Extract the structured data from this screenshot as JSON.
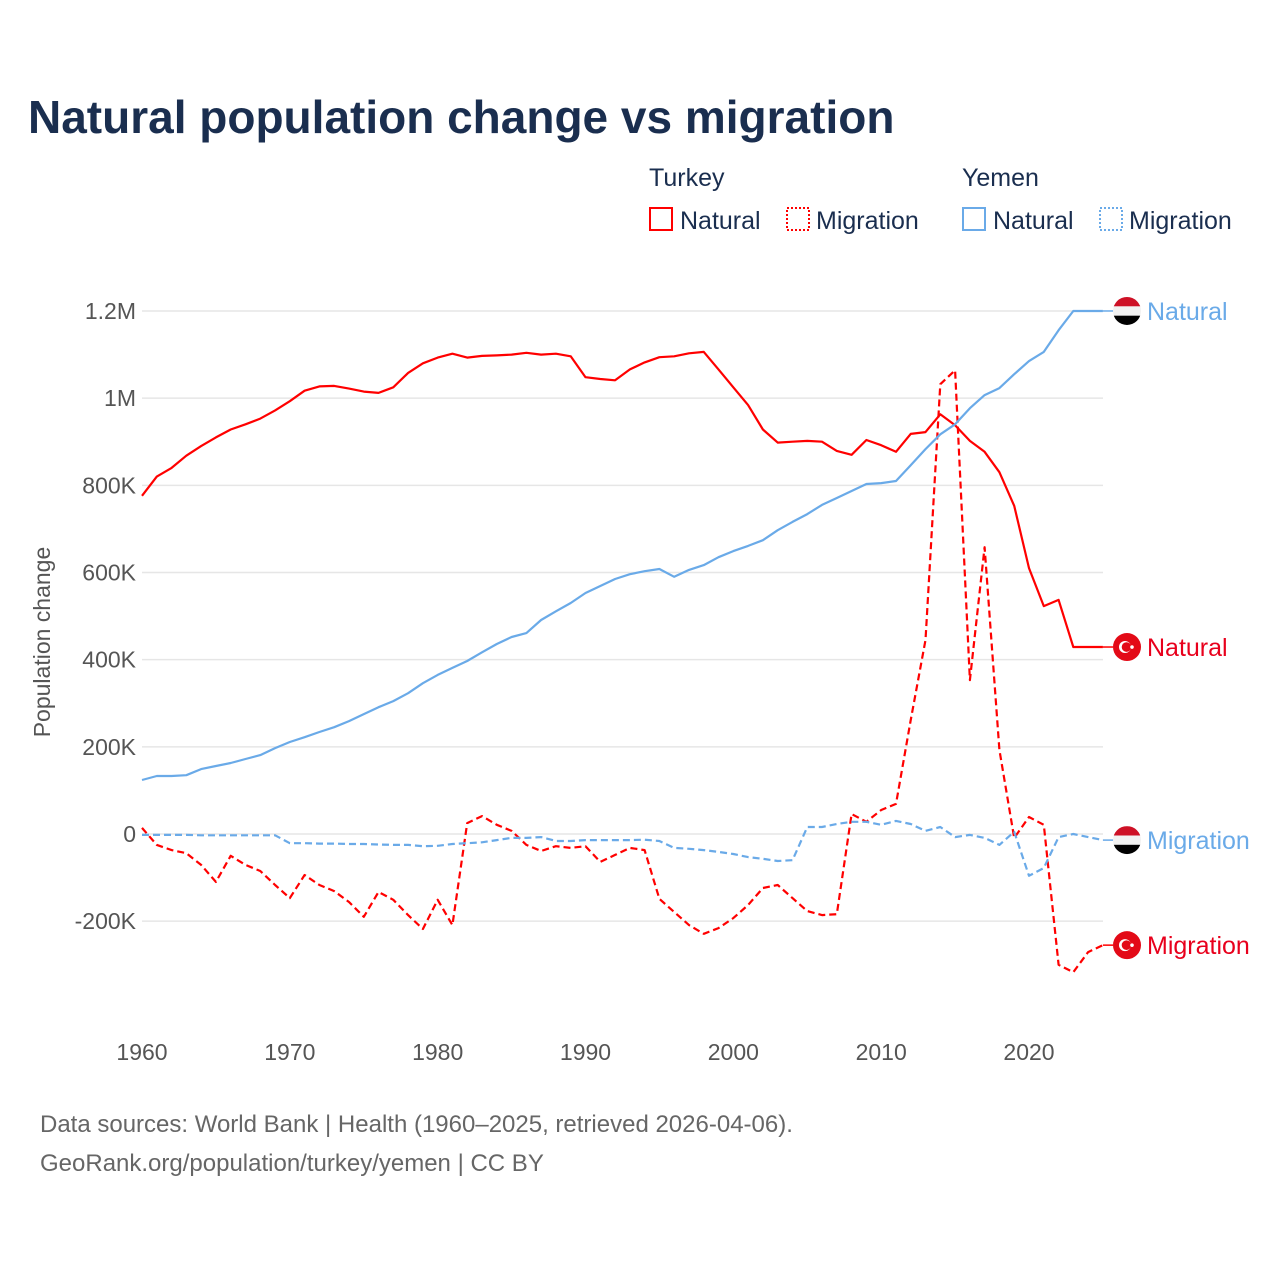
{
  "colors": {
    "turkey": "#ff0000",
    "turkey_label": "#e8001c",
    "yemen": "#6aaae8",
    "title": "#1a2e4f",
    "grid": "#e6e6e6"
  },
  "chart_data": {
    "type": "line",
    "title": "Natural population change vs migration",
    "xlabel": "",
    "ylabel": "Population change",
    "xlim": [
      1960,
      2025
    ],
    "ylim": [
      -400000,
      1200000
    ],
    "grid": true,
    "legend_placement": "top-right",
    "x_ticks": [
      1960,
      1970,
      1980,
      1990,
      2000,
      2010,
      2020
    ],
    "x_tick_labels": [
      "1960",
      "1970",
      "1980",
      "1990",
      "2000",
      "2010",
      "2020"
    ],
    "y_ticks": [
      -200000,
      0,
      200000,
      400000,
      600000,
      800000,
      1000000,
      1200000
    ],
    "y_tick_labels": [
      "-200K",
      "0",
      "200K",
      "400K",
      "600K",
      "800K",
      "1M",
      "1.2M"
    ],
    "legend": {
      "groups": [
        {
          "country": "Turkey",
          "items": [
            {
              "label": "Natural",
              "style": "solid"
            },
            {
              "label": "Migration",
              "style": "dotted"
            }
          ]
        },
        {
          "country": "Yemen",
          "items": [
            {
              "label": "Natural",
              "style": "solid"
            },
            {
              "label": "Migration",
              "style": "dotted"
            }
          ]
        }
      ]
    },
    "x_start": 1960,
    "units": "thousands",
    "series": [
      {
        "name": "Turkey Natural",
        "country": "Turkey",
        "kind": "Natural",
        "color": "#ff0000",
        "dash": false,
        "end_label": "Natural",
        "flag": "turkey-flag",
        "values": [
          776,
          820,
          840,
          868,
          890,
          910,
          928,
          940,
          953,
          972,
          993,
          1017,
          1027,
          1028,
          1022,
          1015,
          1012,
          1025,
          1058,
          1080,
          1093,
          1102,
          1093,
          1097,
          1098,
          1100,
          1104,
          1100,
          1102,
          1096,
          1048,
          1044,
          1041,
          1066,
          1082,
          1094,
          1096,
          1103,
          1106,
          1066,
          1025,
          984,
          928,
          898,
          900,
          902,
          900,
          879,
          870,
          904,
          892,
          877,
          918,
          922,
          963,
          938,
          902,
          877,
          830,
          753,
          610,
          523,
          537,
          429,
          429,
          429
        ]
      },
      {
        "name": "Turkey Migration",
        "country": "Turkey",
        "kind": "Migration",
        "color": "#ff0000",
        "dash": true,
        "end_label": "Migration",
        "flag": "turkey-flag",
        "values": [
          14,
          -25,
          -37,
          -44,
          -71,
          -110,
          -50,
          -71,
          -85,
          -117,
          -147,
          -94,
          -117,
          -131,
          -156,
          -190,
          -133,
          -151,
          -186,
          -218,
          -151,
          -209,
          25,
          41,
          21,
          7,
          -25,
          -39,
          -28,
          -32,
          -28,
          -64,
          -48,
          -32,
          -37,
          -149,
          -179,
          -209,
          -229,
          -216,
          -193,
          -163,
          -124,
          -117,
          -147,
          -177,
          -186,
          -184,
          46,
          28,
          55,
          69,
          261,
          445,
          1032,
          1064,
          353,
          658,
          193,
          -9,
          39,
          21,
          -300,
          -317,
          -271,
          -255
        ]
      },
      {
        "name": "Yemen Natural",
        "country": "Yemen",
        "kind": "Natural",
        "color": "#6aaae8",
        "dash": false,
        "end_label": "Natural",
        "flag": "yemen-flag",
        "values": [
          124,
          133,
          133,
          135,
          149,
          156,
          163,
          172,
          181,
          197,
          211,
          222,
          234,
          245,
          259,
          275,
          291,
          305,
          323,
          346,
          365,
          381,
          397,
          417,
          436,
          452,
          461,
          491,
          511,
          530,
          553,
          569,
          585,
          596,
          603,
          608,
          590,
          606,
          617,
          635,
          649,
          661,
          674,
          697,
          716,
          734,
          755,
          771,
          787,
          803,
          805,
          810,
          846,
          883,
          917,
          940,
          977,
          1007,
          1023,
          1055,
          1085,
          1106,
          1156,
          1200,
          1200,
          1200
        ]
      },
      {
        "name": "Yemen Migration",
        "country": "Yemen",
        "kind": "Migration",
        "color": "#6aaae8",
        "dash": true,
        "end_label": "Migration",
        "flag": "yemen-flag",
        "values": [
          -2,
          -2,
          -2,
          -2,
          -3,
          -3,
          -3,
          -3,
          -3,
          -3,
          -21,
          -21,
          -22,
          -22,
          -23,
          -23,
          -24,
          -25,
          -25,
          -28,
          -27,
          -23,
          -21,
          -19,
          -14,
          -9,
          -9,
          -7,
          -16,
          -16,
          -14,
          -14,
          -14,
          -14,
          -13,
          -16,
          -32,
          -34,
          -37,
          -41,
          -46,
          -53,
          -57,
          -62,
          -60,
          16,
          16,
          23,
          28,
          28,
          21,
          30,
          23,
          7,
          16,
          -7,
          -2,
          -9,
          -25,
          5,
          -96,
          -78,
          -7,
          0,
          -7,
          -14
        ]
      }
    ],
    "sources": [
      "Data sources: World Bank | Health (1960–2025, retrieved 2026-04-06).",
      "GeoRank.org/population/turkey/yemen | CC BY"
    ]
  }
}
